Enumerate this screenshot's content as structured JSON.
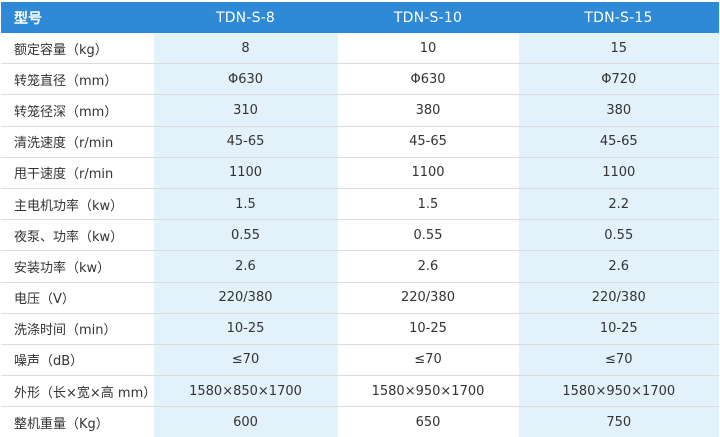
{
  "table": {
    "header": {
      "label": "型号",
      "models": [
        "TDN-S-8",
        "TDN-S-10",
        "TDN-S-15"
      ]
    },
    "rows": [
      {
        "label": "额定容量（kg）",
        "values": [
          "8",
          "10",
          "15"
        ]
      },
      {
        "label": "转笼直径（mm）",
        "values": [
          "Φ630",
          "Φ630",
          "Φ720"
        ]
      },
      {
        "label": "转笼径深（mm）",
        "values": [
          "310",
          "380",
          "380"
        ]
      },
      {
        "label": "清洗速度（r/min",
        "values": [
          "45-65",
          "45-65",
          "45-65"
        ]
      },
      {
        "label": "甩干速度（r/min",
        "values": [
          "1100",
          "1100",
          "1100"
        ]
      },
      {
        "label": "主电机功率（kw）",
        "values": [
          "1.5",
          "1.5",
          "2.2"
        ]
      },
      {
        "label": "夜泵、功率（kw）",
        "values": [
          "0.55",
          "0.55",
          "0.55"
        ]
      },
      {
        "label": "安装功率（kw）",
        "values": [
          "2.6",
          "2.6",
          "2.6"
        ]
      },
      {
        "label": "电压（V）",
        "values": [
          "220/380",
          "220/380",
          "220/380"
        ]
      },
      {
        "label": "洗涤时间（min）",
        "values": [
          "10-25",
          "10-25",
          "10-25"
        ]
      },
      {
        "label": "噪声（dB）",
        "values": [
          "≤70",
          "≤70",
          "≤70"
        ]
      },
      {
        "label": "外形（长×宽×高 mm）",
        "values": [
          "1580×850×1700",
          "1580×950×1700",
          "1580×950×1700"
        ]
      },
      {
        "label": "整机重量（Kg）",
        "values": [
          "600",
          "650",
          "750"
        ]
      }
    ]
  },
  "colors": {
    "header_bg": "#2e8ad6",
    "shaded_column_bg": "#e3f1fb"
  }
}
